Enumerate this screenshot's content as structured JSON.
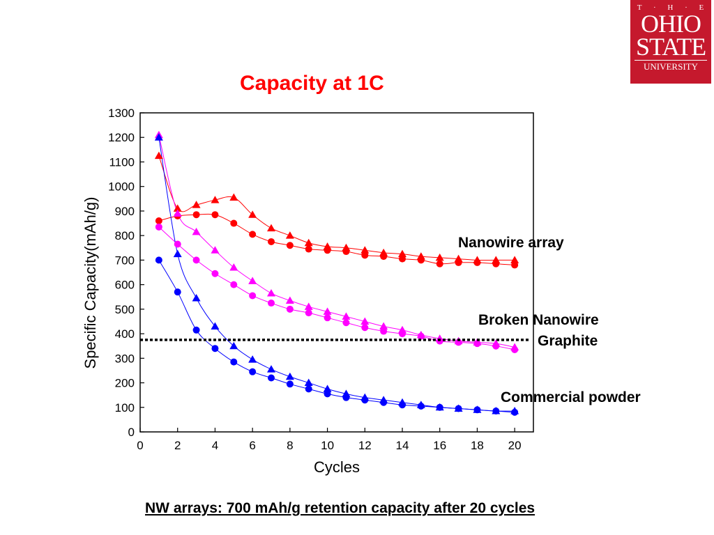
{
  "logo": {
    "line1": "T · H · E",
    "line2": "OHIO",
    "line3": "STATE",
    "line4": "UNIVERSITY"
  },
  "colors": {
    "red": "#ff0000",
    "blue": "#0000ff",
    "magenta": "#ff00ff",
    "logo_bg": "#c5192d"
  },
  "annotations": {
    "nanowire": "Nanowire array",
    "broken": "Broken Nanowire",
    "graphite": "Graphite",
    "commercial": "Commercial powder"
  },
  "footer": "NW arrays: 700 mAh/g retention capacity after 20 cycles",
  "chart_data": {
    "type": "line",
    "title": "Capacity at 1C",
    "xlabel": "Cycles",
    "ylabel": "Specific Capacity(mAh/g)",
    "xlim": [
      0,
      21
    ],
    "ylim": [
      0,
      1300
    ],
    "xticks": [
      0,
      2,
      4,
      6,
      8,
      10,
      12,
      14,
      16,
      18,
      20
    ],
    "yticks": [
      0,
      100,
      200,
      300,
      400,
      500,
      600,
      700,
      800,
      900,
      1000,
      1100,
      1200,
      1300
    ],
    "grid": false,
    "x": [
      1,
      2,
      3,
      4,
      5,
      6,
      7,
      8,
      9,
      10,
      11,
      12,
      13,
      14,
      15,
      16,
      17,
      18,
      19,
      20
    ],
    "series": [
      {
        "color": "#ff0000",
        "marker": "triangle",
        "values": [
          1125,
          910,
          925,
          945,
          955,
          885,
          830,
          800,
          770,
          755,
          750,
          740,
          730,
          725,
          715,
          710,
          705,
          700,
          700,
          700
        ]
      },
      {
        "color": "#ff0000",
        "marker": "circle",
        "values": [
          860,
          880,
          885,
          885,
          850,
          805,
          775,
          760,
          745,
          740,
          735,
          720,
          715,
          705,
          700,
          685,
          690,
          690,
          685,
          680
        ]
      },
      {
        "color": "#ff00ff",
        "marker": "triangle",
        "values": [
          1210,
          890,
          815,
          740,
          670,
          615,
          565,
          535,
          510,
          490,
          470,
          450,
          430,
          415,
          395,
          380,
          370,
          365,
          360,
          345
        ]
      },
      {
        "color": "#ff00ff",
        "marker": "circle",
        "values": [
          835,
          765,
          700,
          645,
          600,
          555,
          525,
          500,
          485,
          465,
          445,
          425,
          410,
          400,
          390,
          370,
          365,
          360,
          350,
          335
        ]
      },
      {
        "color": "#0000ff",
        "marker": "triangle",
        "values": [
          1200,
          725,
          545,
          430,
          350,
          295,
          255,
          225,
          200,
          175,
          155,
          140,
          130,
          120,
          110,
          100,
          95,
          90,
          85,
          85
        ]
      },
      {
        "color": "#0000ff",
        "marker": "circle",
        "values": [
          700,
          570,
          415,
          340,
          285,
          245,
          220,
          195,
          175,
          155,
          140,
          130,
          120,
          110,
          105,
          100,
          95,
          90,
          85,
          80
        ]
      }
    ],
    "reference_line": {
      "y": 375,
      "style": "dotted",
      "color": "#000000"
    }
  }
}
